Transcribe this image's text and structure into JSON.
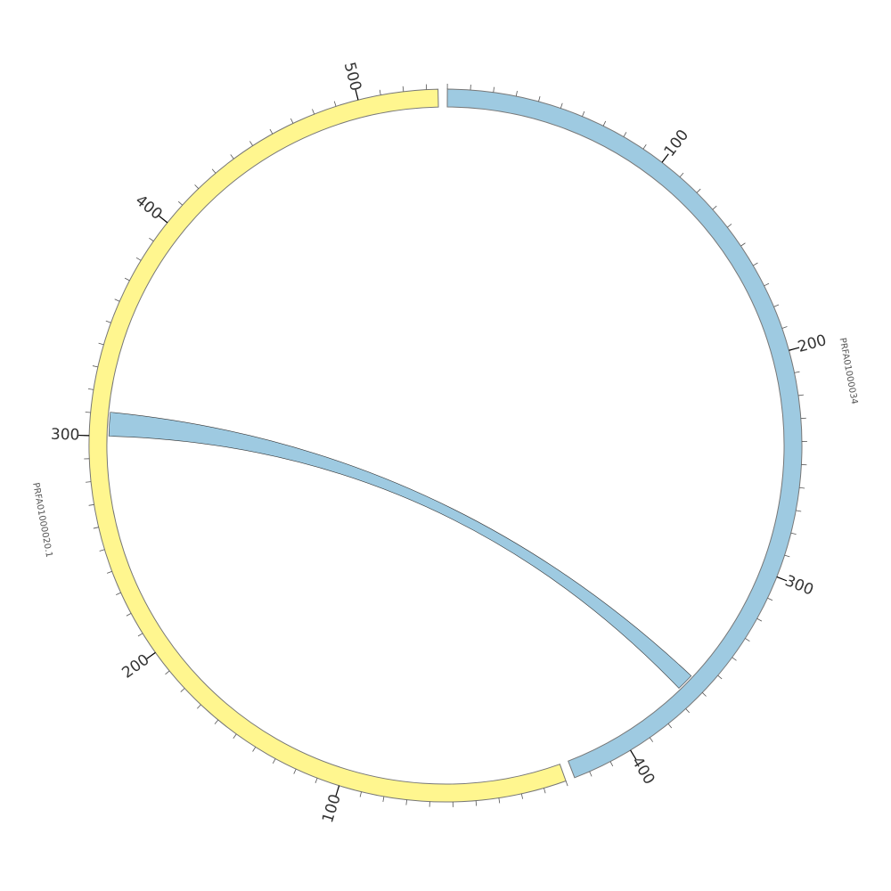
{
  "chart_data": {
    "type": "chord",
    "segments": [
      {
        "name": "PRFA01000034",
        "length": 427,
        "color": "#9ecae1",
        "ticks": [
          100,
          200,
          300,
          400
        ]
      },
      {
        "name": "PRFA01000020.1",
        "length": 535,
        "color": "#fff68f",
        "ticks": [
          100,
          200,
          300,
          400,
          500
        ]
      }
    ],
    "minor_tick_step": 10,
    "chords": [
      {
        "source": "PRFA01000034",
        "source_start": 358,
        "source_end": 366,
        "target": "PRFA01000020.1",
        "target_start": 300,
        "target_end": 311,
        "color": "#9ecae1"
      }
    ]
  }
}
